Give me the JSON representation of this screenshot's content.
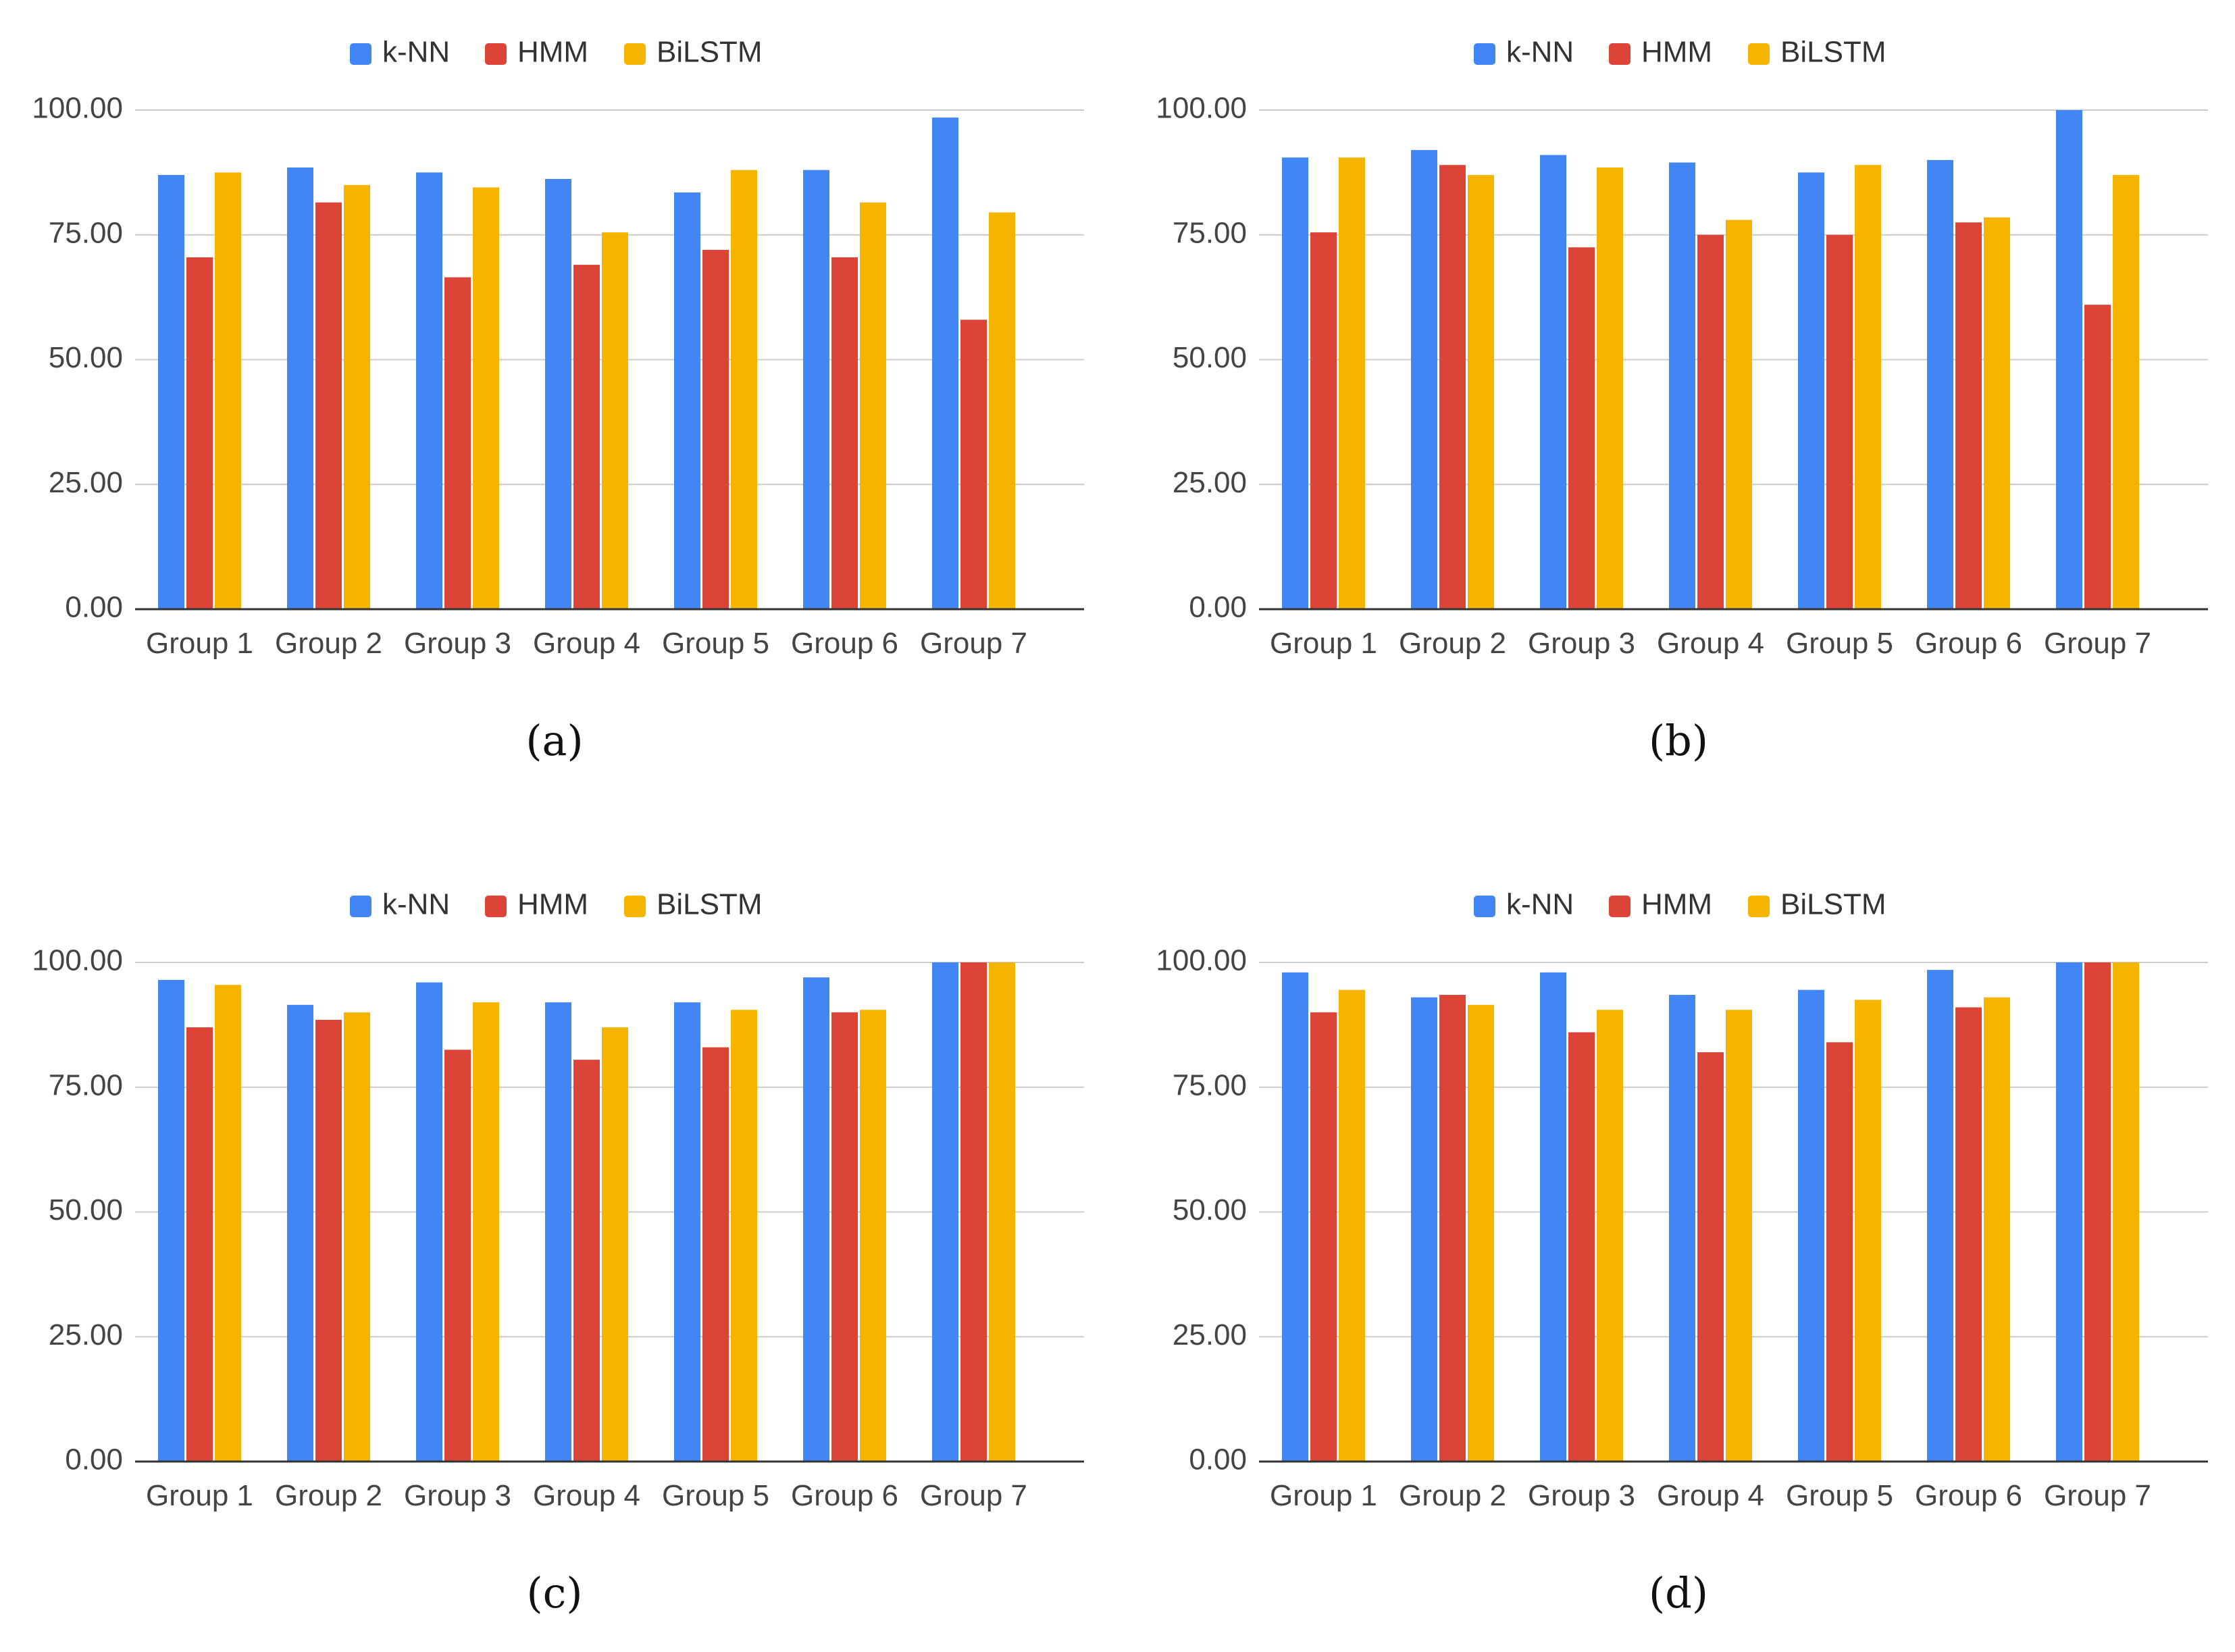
{
  "figure": {
    "legend": [
      "k-NN",
      "HMM",
      "BiLSTM"
    ],
    "colors": {
      "k-NN": "#4285f4",
      "HMM": "#db4437",
      "BiLSTM": "#f4b400"
    },
    "panel_captions": [
      "(a)",
      "(b)",
      "(c)",
      "(d)"
    ]
  },
  "chart_data": [
    {
      "type": "bar",
      "label": "(a)",
      "categories": [
        "Group 1",
        "Group 2",
        "Group 3",
        "Group 4",
        "Group 5",
        "Group 6",
        "Group 7"
      ],
      "series": [
        {
          "name": "k-NN",
          "values": [
            87.0,
            88.5,
            87.5,
            86.2,
            83.5,
            88.0,
            98.5
          ]
        },
        {
          "name": "HMM",
          "values": [
            70.5,
            81.5,
            66.5,
            69.0,
            72.0,
            70.5,
            58.0
          ]
        },
        {
          "name": "BiLSTM",
          "values": [
            87.5,
            85.0,
            84.5,
            75.5,
            88.0,
            81.5,
            79.5
          ]
        }
      ],
      "ylim": [
        0,
        100
      ],
      "yticks": [
        "0.00",
        "25.00",
        "50.00",
        "75.00",
        "100.00"
      ],
      "grid": true,
      "legend_position": "top-center"
    },
    {
      "type": "bar",
      "label": "(b)",
      "categories": [
        "Group 1",
        "Group 2",
        "Group 3",
        "Group 4",
        "Group 5",
        "Group 6",
        "Group 7"
      ],
      "series": [
        {
          "name": "k-NN",
          "values": [
            90.5,
            92.0,
            91.0,
            89.5,
            87.5,
            90.0,
            100.0
          ]
        },
        {
          "name": "HMM",
          "values": [
            75.5,
            89.0,
            72.5,
            75.0,
            75.0,
            77.5,
            61.0
          ]
        },
        {
          "name": "BiLSTM",
          "values": [
            90.5,
            87.0,
            88.5,
            78.0,
            89.0,
            78.5,
            87.0
          ]
        }
      ],
      "ylim": [
        0,
        100
      ],
      "yticks": [
        "0.00",
        "25.00",
        "50.00",
        "75.00",
        "100.00"
      ],
      "grid": true,
      "legend_position": "top-center"
    },
    {
      "type": "bar",
      "label": "(c)",
      "categories": [
        "Group 1",
        "Group 2",
        "Group 3",
        "Group 4",
        "Group 5",
        "Group 6",
        "Group 7"
      ],
      "series": [
        {
          "name": "k-NN",
          "values": [
            96.5,
            91.5,
            96.0,
            92.0,
            92.0,
            97.0,
            100.0
          ]
        },
        {
          "name": "HMM",
          "values": [
            87.0,
            88.5,
            82.5,
            80.5,
            83.0,
            90.0,
            100.0
          ]
        },
        {
          "name": "BiLSTM",
          "values": [
            95.5,
            90.0,
            92.0,
            87.0,
            90.5,
            90.5,
            100.0
          ]
        }
      ],
      "ylim": [
        0,
        100
      ],
      "yticks": [
        "0.00",
        "25.00",
        "50.00",
        "75.00",
        "100.00"
      ],
      "grid": true,
      "legend_position": "top-center"
    },
    {
      "type": "bar",
      "label": "(d)",
      "categories": [
        "Group 1",
        "Group 2",
        "Group 3",
        "Group 4",
        "Group 5",
        "Group 6",
        "Group 7"
      ],
      "series": [
        {
          "name": "k-NN",
          "values": [
            98.0,
            93.0,
            98.0,
            93.5,
            94.5,
            98.5,
            100.0
          ]
        },
        {
          "name": "HMM",
          "values": [
            90.0,
            93.5,
            86.0,
            82.0,
            84.0,
            91.0,
            100.0
          ]
        },
        {
          "name": "BiLSTM",
          "values": [
            94.5,
            91.5,
            90.5,
            90.5,
            92.5,
            93.0,
            100.0
          ]
        }
      ],
      "ylim": [
        0,
        100
      ],
      "yticks": [
        "0.00",
        "25.00",
        "50.00",
        "75.00",
        "100.00"
      ],
      "grid": true,
      "legend_position": "top-center"
    }
  ]
}
